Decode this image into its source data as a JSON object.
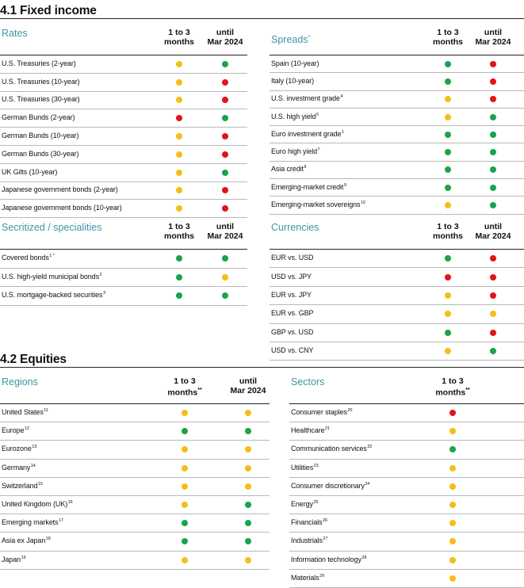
{
  "colors": {
    "green": "#1aa34a",
    "yellow": "#f6bd16",
    "red": "#e3131b",
    "title_teal": "#3d95a6"
  },
  "sections": [
    {
      "title": "4.1 Fixed income"
    },
    {
      "title": "4.2 Equities"
    }
  ],
  "panels": [
    {
      "title": "Rates",
      "title_sup": "",
      "columns": [
        {
          "line1": "1 to 3",
          "line2": "months",
          "sup": ""
        },
        {
          "line1": "until",
          "line2": "Mar 2024",
          "sup": ""
        }
      ],
      "rows": [
        {
          "label": "U.S. Treasuries (2-year)",
          "sup": "",
          "signals": [
            "yellow",
            "green"
          ]
        },
        {
          "label": "U.S. Treasuries (10-year)",
          "sup": "",
          "signals": [
            "yellow",
            "red"
          ]
        },
        {
          "label": "U.S. Treasuries (30-year)",
          "sup": "",
          "signals": [
            "yellow",
            "red"
          ]
        },
        {
          "label": "German Bunds (2-year)",
          "sup": "",
          "signals": [
            "red",
            "green"
          ]
        },
        {
          "label": "German Bunds (10-year)",
          "sup": "",
          "signals": [
            "yellow",
            "red"
          ]
        },
        {
          "label": "German Bunds (30-year)",
          "sup": "",
          "signals": [
            "yellow",
            "red"
          ]
        },
        {
          "label": "UK Gilts (10-year)",
          "sup": "",
          "signals": [
            "yellow",
            "green"
          ]
        },
        {
          "label": "Japanese government bonds (2-year)",
          "sup": "",
          "signals": [
            "yellow",
            "red"
          ]
        },
        {
          "label": "Japanese government bonds (10-year)",
          "sup": "",
          "signals": [
            "yellow",
            "red"
          ]
        }
      ]
    },
    {
      "title": "Spreads",
      "title_sup": "*",
      "columns": [
        {
          "line1": "1 to 3",
          "line2": "months",
          "sup": ""
        },
        {
          "line1": "until",
          "line2": "Mar 2024",
          "sup": ""
        }
      ],
      "rows": [
        {
          "label": "Spain (10-year)",
          "sup": "",
          "signals": [
            "green",
            "red"
          ]
        },
        {
          "label": "Italy (10-year)",
          "sup": "",
          "signals": [
            "green",
            "red"
          ]
        },
        {
          "label": "U.S. investment grade",
          "sup": "4",
          "signals": [
            "yellow",
            "red"
          ]
        },
        {
          "label": "U.S. high yield",
          "sup": "5",
          "signals": [
            "yellow",
            "green"
          ]
        },
        {
          "label": "Euro investment grade",
          "sup": "1",
          "signals": [
            "green",
            "green"
          ]
        },
        {
          "label": "Euro high yield",
          "sup": "7",
          "signals": [
            "green",
            "green"
          ]
        },
        {
          "label": "Asia credit",
          "sup": "8",
          "signals": [
            "green",
            "green"
          ]
        },
        {
          "label": "Emerging-market credit",
          "sup": "9",
          "signals": [
            "green",
            "green"
          ]
        },
        {
          "label": "Emerging-market sovereigns",
          "sup": "10",
          "signals": [
            "yellow",
            "green"
          ]
        }
      ]
    },
    {
      "title": "Secritized / specialities",
      "title_sup": "",
      "columns": [
        {
          "line1": "1 to 3",
          "line2": "months",
          "sup": ""
        },
        {
          "line1": "until",
          "line2": "Mar 2024",
          "sup": ""
        }
      ],
      "rows": [
        {
          "label": "Covered bonds",
          "sup": "1 *",
          "signals": [
            "green",
            "green"
          ]
        },
        {
          "label": "U.S. high-yield municipal bonds",
          "sup": "2",
          "signals": [
            "green",
            "yellow"
          ]
        },
        {
          "label": "U.S. mortgage-backed securities",
          "sup": "3",
          "signals": [
            "green",
            "green"
          ]
        }
      ]
    },
    {
      "title": "Currencies",
      "title_sup": "",
      "columns": [
        {
          "line1": "1 to 3",
          "line2": "months",
          "sup": ""
        },
        {
          "line1": "until",
          "line2": "Mar 2024",
          "sup": ""
        }
      ],
      "rows": [
        {
          "label": "EUR vs. USD",
          "sup": "",
          "signals": [
            "green",
            "red"
          ]
        },
        {
          "label": "USD vs. JPY",
          "sup": "",
          "signals": [
            "red",
            "red"
          ]
        },
        {
          "label": "EUR vs. JPY",
          "sup": "",
          "signals": [
            "yellow",
            "red"
          ]
        },
        {
          "label": "EUR vs. GBP",
          "sup": "",
          "signals": [
            "yellow",
            "yellow"
          ]
        },
        {
          "label": "GBP vs. USD",
          "sup": "",
          "signals": [
            "green",
            "red"
          ]
        },
        {
          "label": "USD vs. CNY",
          "sup": "",
          "signals": [
            "yellow",
            "green"
          ]
        }
      ]
    },
    {
      "title": "Regions",
      "title_sup": "",
      "columns": [
        {
          "line1": "1 to 3",
          "line2": "months",
          "sup": "**"
        },
        {
          "line1": "until",
          "line2": "Mar 2024",
          "sup": ""
        }
      ],
      "rows": [
        {
          "label": "United States",
          "sup": "11",
          "signals": [
            "yellow",
            "yellow"
          ]
        },
        {
          "label": "Europe",
          "sup": "12",
          "signals": [
            "green",
            "green"
          ]
        },
        {
          "label": "Eurozone",
          "sup": "13",
          "signals": [
            "yellow",
            "yellow"
          ]
        },
        {
          "label": "Germany",
          "sup": "14",
          "signals": [
            "yellow",
            "yellow"
          ]
        },
        {
          "label": "Switzerland",
          "sup": "15",
          "signals": [
            "yellow",
            "yellow"
          ]
        },
        {
          "label": "United Kingdom (UK)",
          "sup": "16",
          "signals": [
            "yellow",
            "green"
          ]
        },
        {
          "label": "Emerging markets",
          "sup": "17",
          "signals": [
            "green",
            "green"
          ]
        },
        {
          "label": "Asia ex Japan",
          "sup": "18",
          "signals": [
            "green",
            "green"
          ]
        },
        {
          "label": "Japan",
          "sup": "19",
          "signals": [
            "yellow",
            "yellow"
          ]
        }
      ]
    },
    {
      "title": "Sectors",
      "title_sup": "",
      "columns": [
        {
          "line1": "1 to 3",
          "line2": "months",
          "sup": "**"
        }
      ],
      "rows": [
        {
          "label": "Consumer staples",
          "sup": "20",
          "signals": [
            "red"
          ]
        },
        {
          "label": "Healthcare",
          "sup": "21",
          "signals": [
            "yellow"
          ]
        },
        {
          "label": "Communication services",
          "sup": "22",
          "signals": [
            "green"
          ]
        },
        {
          "label": "Utilities",
          "sup": "23",
          "signals": [
            "yellow"
          ]
        },
        {
          "label": "Consumer discretionary",
          "sup": "24",
          "signals": [
            "yellow"
          ]
        },
        {
          "label": "Energy",
          "sup": "25",
          "signals": [
            "yellow"
          ]
        },
        {
          "label": "Financials",
          "sup": "26",
          "signals": [
            "yellow"
          ]
        },
        {
          "label": "Industrials",
          "sup": "27",
          "signals": [
            "yellow"
          ]
        },
        {
          "label": "Information technology",
          "sup": "28",
          "signals": [
            "yellow"
          ]
        },
        {
          "label": "Materials",
          "sup": "29",
          "signals": [
            "yellow"
          ]
        }
      ]
    }
  ]
}
